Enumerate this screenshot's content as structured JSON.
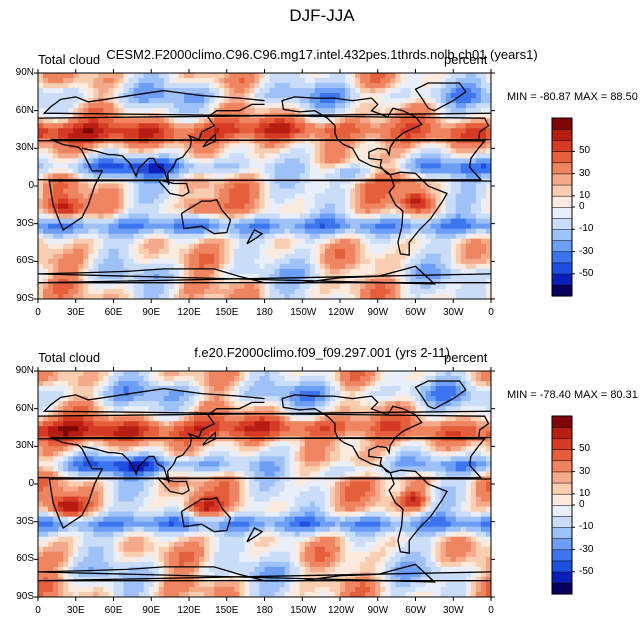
{
  "page": {
    "title": "DJF-JJA"
  },
  "colormap": [
    "#08005e",
    "#0a1fb8",
    "#1f4fe0",
    "#3d75f0",
    "#6c9ef5",
    "#9ec2f7",
    "#c9dcf8",
    "#e8eefa",
    "#fbeadd",
    "#f8cdb0",
    "#f3a98a",
    "#ee8560",
    "#e55f3c",
    "#d63a25",
    "#b81d14",
    "#7e0606"
  ],
  "colorbar_levels": [
    "50",
    "30",
    "10",
    "0",
    "-10",
    "-30",
    "-50"
  ],
  "x_ticks": [
    "0",
    "30E",
    "60E",
    "90E",
    "120E",
    "150E",
    "180",
    "150W",
    "120W",
    "90W",
    "60W",
    "30W",
    "0"
  ],
  "y_ticks": [
    "90N",
    "60N",
    "30N",
    "0",
    "30S",
    "60S",
    "90S"
  ],
  "panels": [
    {
      "left_title": "Total cloud",
      "center_title": "CESM2.F2000climo.C96.C96.mg17.intel.432pes.1thrds.nolb.ch01 (years1)",
      "right_title": "percent",
      "min_max": "MIN = -80.87  MAX =  88.50"
    },
    {
      "left_title": "Total cloud",
      "center_title": "f.e20.F2000climo.f09_f09.297.001 (yrs 2-11)",
      "right_title": "percent",
      "min_max": "MIN = -78.40  MAX =  80.31"
    }
  ],
  "chart_data": [
    {
      "type": "heatmap",
      "title": "Total cloud — CESM2.F2000climo.C96.C96.mg17.intel.432pes.1thrds.nolb.ch01 (years1)",
      "units": "percent",
      "x_range": [
        0,
        360
      ],
      "y_range": [
        -90,
        90
      ],
      "min": -80.87,
      "max": 88.5,
      "contour_levels": [
        -70,
        -60,
        -50,
        -40,
        -30,
        -20,
        -10,
        -5,
        0,
        5,
        10,
        20,
        30,
        40,
        50,
        60,
        70
      ]
    },
    {
      "type": "heatmap",
      "title": "Total cloud — f.e20.F2000climo.f09_f09.297.001 (yrs 2-11)",
      "units": "percent",
      "x_range": [
        0,
        360
      ],
      "y_range": [
        -90,
        90
      ],
      "min": -78.4,
      "max": 80.31,
      "contour_levels": [
        -70,
        -60,
        -50,
        -40,
        -30,
        -20,
        -10,
        -5,
        0,
        5,
        10,
        20,
        30,
        40,
        50,
        60,
        70
      ]
    }
  ]
}
